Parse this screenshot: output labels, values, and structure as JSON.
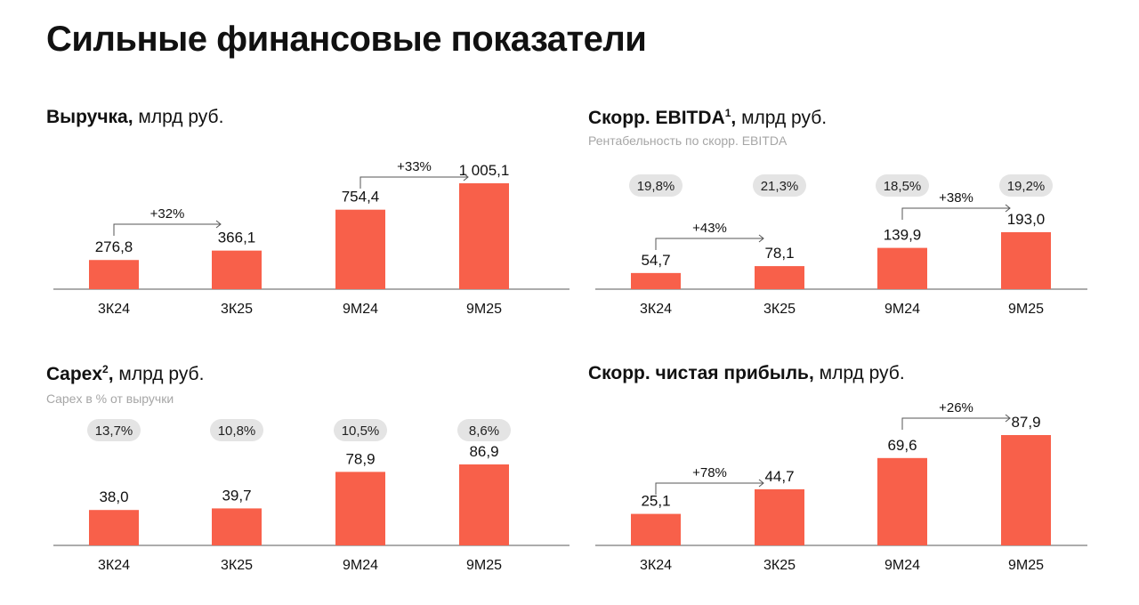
{
  "page_title": "Сильные финансовые показатели",
  "colors": {
    "bar": "#f8604a",
    "pill": "#e4e4e4",
    "axis": "#7a7a7a",
    "arrow": "#555555"
  },
  "chart_data": [
    {
      "type": "bar",
      "title_bold": "Выручка,",
      "title_rest": " млрд руб.",
      "sup": "",
      "subtitle": "",
      "categories": [
        "3К24",
        "3К25",
        "9М24",
        "9М25"
      ],
      "values": [
        276.8,
        366.1,
        754.4,
        1005.1
      ],
      "value_labels": [
        "276,8",
        "366,1",
        "754,4",
        "1 005,1"
      ],
      "pills": [],
      "growth": [
        {
          "from": 0,
          "to": 1,
          "label": "+32%"
        },
        {
          "from": 2,
          "to": 3,
          "label": "+33%"
        }
      ]
    },
    {
      "type": "bar",
      "title_bold": "Скорр. EBITDA",
      "sup": "1",
      "title_rest": " млрд руб.",
      "title_comma": ",",
      "subtitle": "Рентабельность по скорр. EBITDA",
      "categories": [
        "3К24",
        "3К25",
        "9М24",
        "9М25"
      ],
      "values": [
        54.7,
        78.1,
        139.9,
        193.0
      ],
      "value_labels": [
        "54,7",
        "78,1",
        "139,9",
        "193,0"
      ],
      "pills": [
        "19,8%",
        "21,3%",
        "18,5%",
        "19,2%"
      ],
      "growth": [
        {
          "from": 0,
          "to": 1,
          "label": "+43%"
        },
        {
          "from": 2,
          "to": 3,
          "label": "+38%"
        }
      ]
    },
    {
      "type": "bar",
      "title_bold": "Capex",
      "sup": "2",
      "title_comma": ",",
      "title_rest": " млрд руб.",
      "subtitle": "Capex в % от выручки",
      "categories": [
        "3К24",
        "3К25",
        "9М24",
        "9М25"
      ],
      "values": [
        38.0,
        39.7,
        78.9,
        86.9
      ],
      "value_labels": [
        "38,0",
        "39,7",
        "78,9",
        "86,9"
      ],
      "pills": [
        "13,7%",
        "10,8%",
        "10,5%",
        "8,6%"
      ],
      "growth": []
    },
    {
      "type": "bar",
      "title_bold": "Скорр. чистая прибыль,",
      "sup": "",
      "title_rest": " млрд руб.",
      "subtitle": "",
      "categories": [
        "3К24",
        "3К25",
        "9М24",
        "9М25"
      ],
      "values": [
        25.1,
        44.7,
        69.6,
        87.9
      ],
      "value_labels": [
        "25,1",
        "44,7",
        "69,6",
        "87,9"
      ],
      "pills": [],
      "growth": [
        {
          "from": 0,
          "to": 1,
          "label": "+78%"
        },
        {
          "from": 2,
          "to": 3,
          "label": "+26%"
        }
      ]
    }
  ]
}
